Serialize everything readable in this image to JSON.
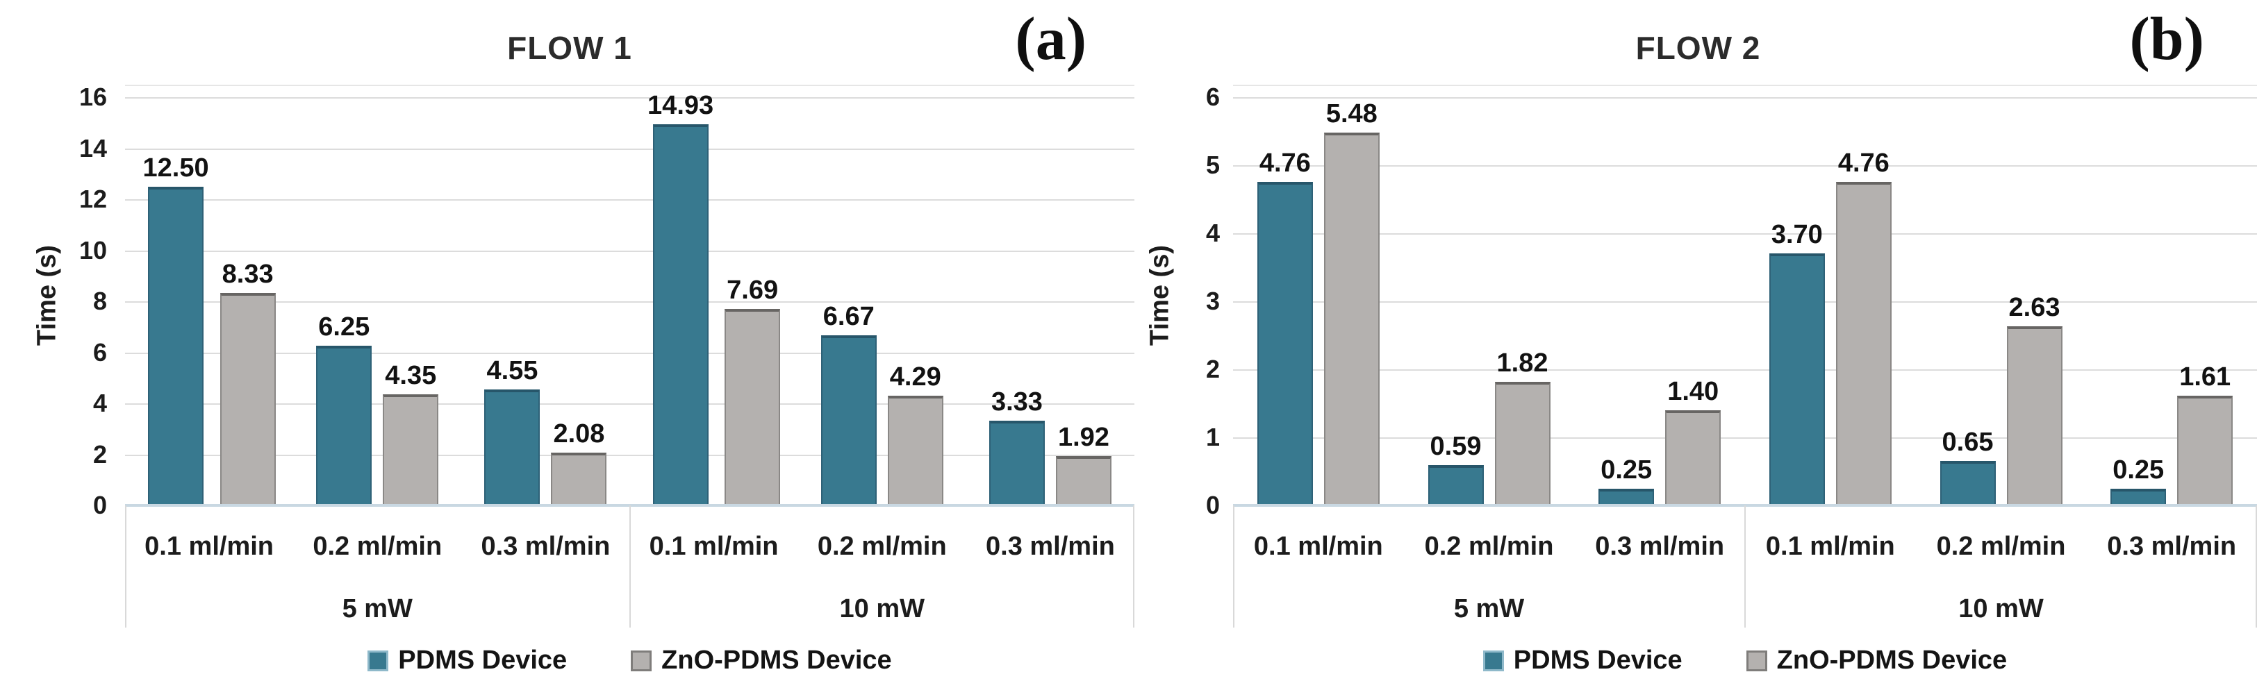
{
  "chart_data": [
    {
      "type": "bar",
      "title": "FLOW 1",
      "panel_label": "(a)",
      "ylabel": "Time (s)",
      "ylim": [
        0,
        16
      ],
      "ytick_step": 2,
      "yticks": [
        0,
        2,
        4,
        6,
        8,
        10,
        12,
        14,
        16
      ],
      "grid": true,
      "legend_position": "bottom",
      "group_labels": [
        "5 mW",
        "10 mW"
      ],
      "categories": [
        "0.1 ml/min",
        "0.2 ml/min",
        "0.3 ml/min",
        "0.1 ml/min",
        "0.2 ml/min",
        "0.3 ml/min"
      ],
      "series": [
        {
          "name": "PDMS Device",
          "color": "#38798f",
          "values": [
            12.5,
            6.25,
            4.55,
            14.93,
            6.67,
            3.33
          ],
          "data_labels": [
            "12.50",
            "6.25",
            "4.55",
            "14.93",
            "6.67",
            "3.33"
          ]
        },
        {
          "name": "ZnO-PDMS Device",
          "color": "#b4b1af",
          "values": [
            8.33,
            4.35,
            2.08,
            7.69,
            4.29,
            1.92
          ],
          "data_labels": [
            "8.33",
            "4.35",
            "2.08",
            "7.69",
            "4.29",
            "1.92"
          ]
        }
      ]
    },
    {
      "type": "bar",
      "title": "FLOW 2",
      "panel_label": "(b)",
      "ylabel": "Time (s)",
      "ylim": [
        0,
        6
      ],
      "ytick_step": 1,
      "yticks": [
        0,
        1,
        2,
        3,
        4,
        5,
        6
      ],
      "grid": true,
      "legend_position": "bottom",
      "group_labels": [
        "5 mW",
        "10 mW"
      ],
      "categories": [
        "0.1 ml/min",
        "0.2 ml/min",
        "0.3 ml/min",
        "0.1 ml/min",
        "0.2 ml/min",
        "0.3 ml/min"
      ],
      "series": [
        {
          "name": "PDMS Device",
          "color": "#38798f",
          "values": [
            4.76,
            0.59,
            0.25,
            3.7,
            0.65,
            0.25
          ],
          "data_labels": [
            "4.76",
            "0.59",
            "0.25",
            "3.70",
            "0.65",
            "0.25"
          ]
        },
        {
          "name": "ZnO-PDMS Device",
          "color": "#b4b1af",
          "values": [
            5.48,
            1.82,
            1.4,
            4.76,
            2.63,
            1.61
          ],
          "data_labels": [
            "5.48",
            "1.82",
            "1.40",
            "4.76",
            "2.63",
            "1.61"
          ]
        }
      ]
    }
  ],
  "colors": {
    "pdms_bar": "#38798f",
    "zno_pdms_bar": "#b4b1af",
    "gridline": "#dcdcdc",
    "axis_baseline": "#c9d8e2"
  }
}
